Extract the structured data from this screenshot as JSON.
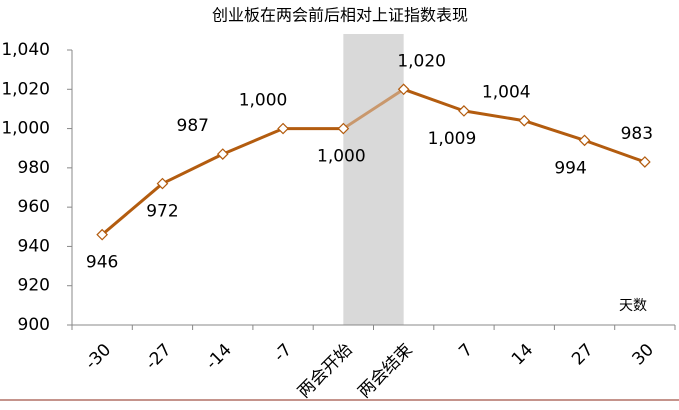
{
  "chart_data": {
    "type": "line",
    "title": "创业板在两会前后相对上证指数表现",
    "x_axis_label": "天数",
    "categories": [
      "-30",
      "-27",
      "-14",
      "-7",
      "两会开始",
      "两会结束",
      "7",
      "14",
      "27",
      "30"
    ],
    "values": [
      946,
      972,
      987,
      1000,
      1000,
      1020,
      1009,
      1004,
      994,
      983
    ],
    "value_labels": [
      "946",
      "972",
      "987",
      "1,000",
      "1,000",
      "1,020",
      "1,009",
      "1,004",
      "994",
      "983"
    ],
    "color": "#b35c0f",
    "highlight_color": "#c9986d",
    "shade_color": "#d9d9d9",
    "ylim": [
      900,
      1040
    ],
    "yticks": [
      900,
      920,
      940,
      960,
      980,
      {
        "value": 1000,
        "label": "1,000"
      },
      {
        "value": 1020,
        "label": "1,020"
      },
      {
        "value": 1040,
        "label": "1,040"
      }
    ],
    "grid": false
  }
}
